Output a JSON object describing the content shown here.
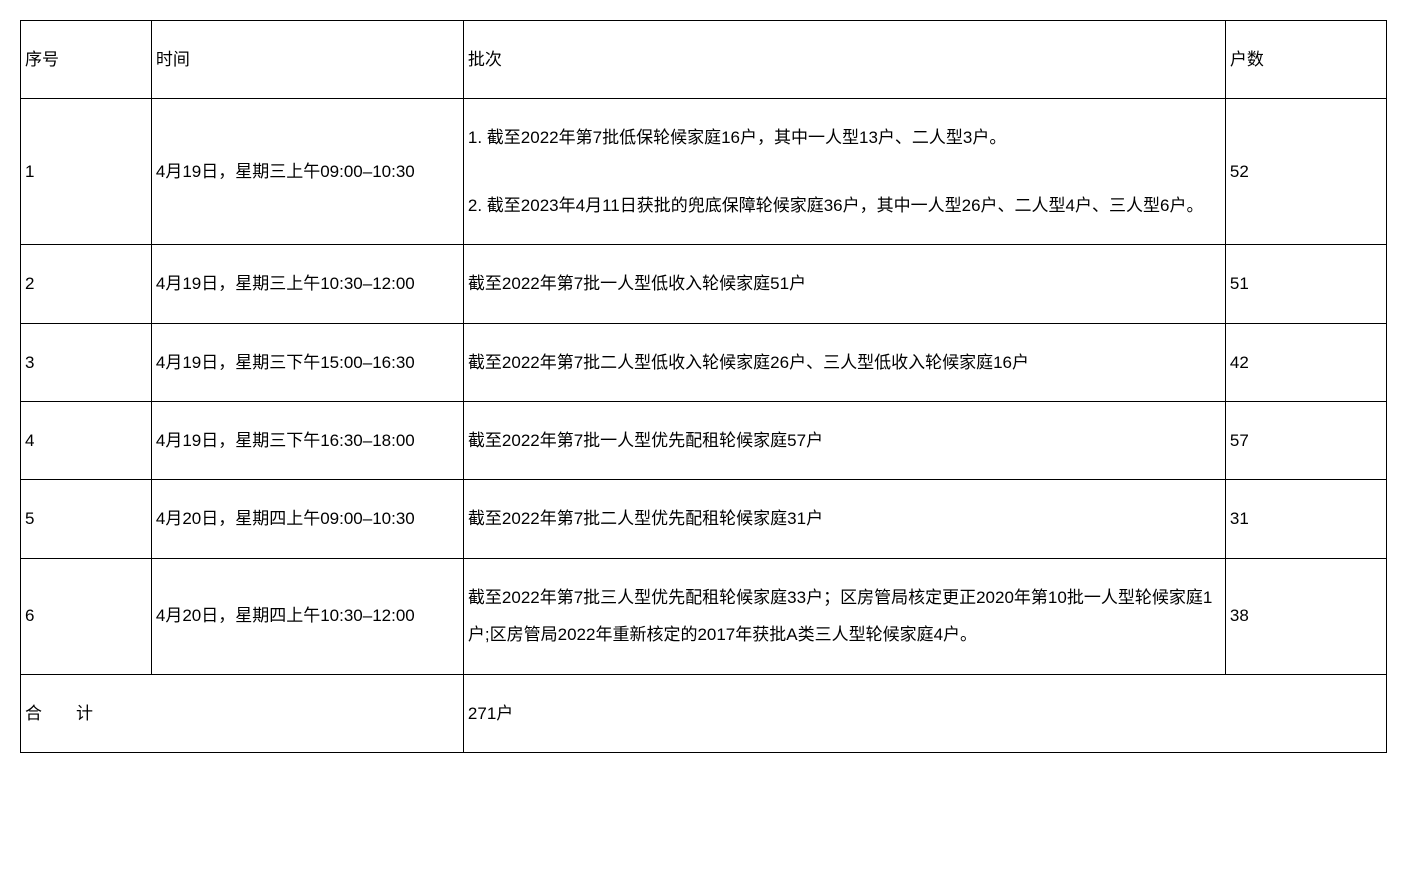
{
  "table": {
    "headers": {
      "seq": "序号",
      "time": "时间",
      "batch": "批次",
      "count": "户数"
    },
    "rows": [
      {
        "seq": "1",
        "time": "4月19日，星期三上午09:00–10:30",
        "batch_line1": "1. 截至2022年第7批低保轮候家庭16户，其中一人型13户、二人型3户。",
        "batch_line2": "2. 截至2023年4月11日获批的兜底保障轮候家庭36户，其中一人型26户、二人型4户、三人型6户。",
        "count": "52"
      },
      {
        "seq": "2",
        "time": "4月19日，星期三上午10:30–12:00",
        "batch": "截至2022年第7批一人型低收入轮候家庭51户",
        "count": "51"
      },
      {
        "seq": "3",
        "time": "4月19日，星期三下午15:00–16:30",
        "batch": "截至2022年第7批二人型低收入轮候家庭26户、三人型低收入轮候家庭16户",
        "count": "42"
      },
      {
        "seq": "4",
        "time": "4月19日，星期三下午16:30–18:00",
        "batch": "截至2022年第7批一人型优先配租轮候家庭57户",
        "count": "57"
      },
      {
        "seq": "5",
        "time": "4月20日，星期四上午09:00–10:30",
        "batch": "截至2022年第7批二人型优先配租轮候家庭31户",
        "count": "31"
      },
      {
        "seq": "6",
        "time": "4月20日，星期四上午10:30–12:00",
        "batch": "截至2022年第7批三人型优先配租轮候家庭33户；区房管局核定更正2020年第10批一人型轮候家庭1户;区房管局2022年重新核定的2017年获批A类三人型轮候家庭4户。",
        "count": "38"
      }
    ],
    "footer": {
      "label": "合　　计",
      "total": "271户"
    }
  },
  "styling": {
    "border_color": "#000000",
    "background_color": "#ffffff",
    "text_color": "#000000",
    "font_size": 17,
    "line_height": 2.2,
    "column_widths": {
      "seq": 130,
      "time": 310,
      "batch": 757,
      "count": 160
    }
  }
}
